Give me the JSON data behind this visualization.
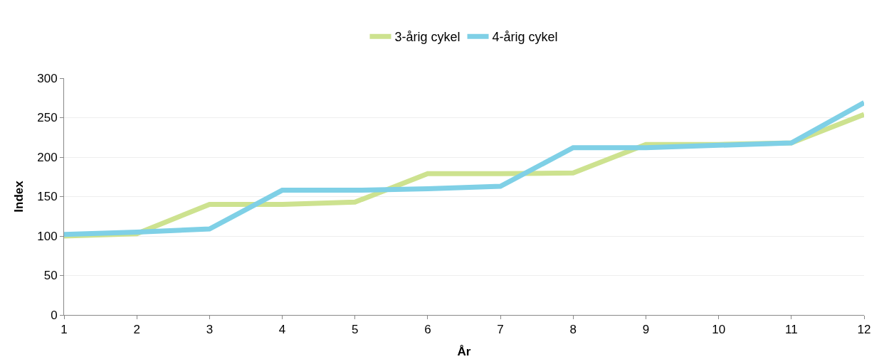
{
  "chart_data": {
    "type": "line",
    "xlabel": "År",
    "ylabel": "Index",
    "x": [
      1,
      2,
      3,
      4,
      5,
      6,
      7,
      8,
      9,
      10,
      11,
      12
    ],
    "series": [
      {
        "name": "3-årig cykel",
        "color": "#cde28f",
        "values": [
          100,
          103,
          140,
          140,
          143,
          179,
          179,
          180,
          216,
          216,
          218,
          254
        ]
      },
      {
        "name": "4-årig cykel",
        "color": "#7fd0e6",
        "values": [
          102,
          105,
          109,
          158,
          158,
          160,
          163,
          212,
          212,
          215,
          218,
          269
        ]
      }
    ],
    "xlim": [
      1,
      12
    ],
    "xticks": [
      1,
      2,
      3,
      4,
      5,
      6,
      7,
      8,
      9,
      10,
      11,
      12
    ],
    "ylim": [
      0,
      300
    ],
    "yticks": [
      0,
      50,
      100,
      150,
      200,
      250,
      300
    ],
    "grid": "y",
    "legend": "top",
    "marker": "none",
    "line_style": "solid"
  }
}
